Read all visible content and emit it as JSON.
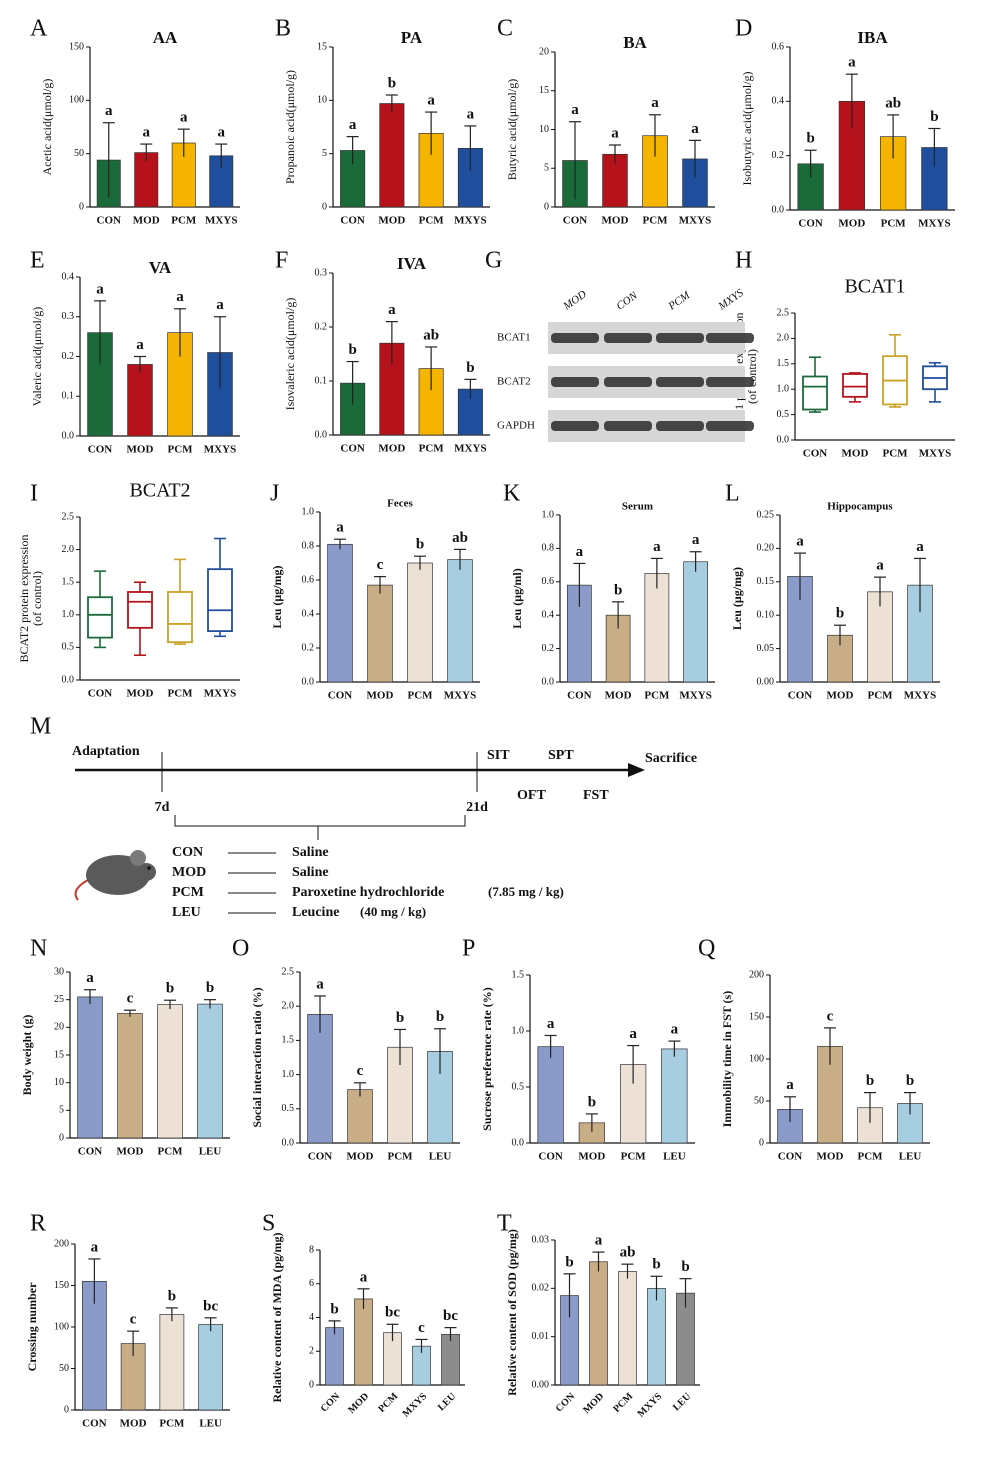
{
  "chart_data": [
    {
      "type": "bar",
      "panel": "A",
      "title": "AA",
      "ylabel": [
        "Acetic acid(μmol/g)"
      ],
      "categories": [
        "CON",
        "MOD",
        "PCM",
        "MXYS"
      ],
      "values": [
        44,
        51,
        60,
        48
      ],
      "errors": [
        35,
        8,
        13,
        11
      ],
      "annotations": [
        "a",
        "a",
        "a",
        "a"
      ],
      "colors": [
        "#1b6b3a",
        "#b5121b",
        "#f5b400",
        "#1f4e9c"
      ],
      "ylim": [
        0,
        150
      ],
      "yticks": [
        0,
        50,
        100,
        150
      ]
    },
    {
      "type": "bar",
      "panel": "B",
      "title": "PA",
      "ylabel": [
        "Propanoic acid(μmol/g)"
      ],
      "categories": [
        "CON",
        "MOD",
        "PCM",
        "MXYS"
      ],
      "values": [
        5.3,
        9.7,
        6.9,
        5.5
      ],
      "errors": [
        1.3,
        0.8,
        2.0,
        2.1
      ],
      "annotations": [
        "a",
        "b",
        "a",
        "a"
      ],
      "colors": [
        "#1b6b3a",
        "#b5121b",
        "#f5b400",
        "#1f4e9c"
      ],
      "ylim": [
        0,
        15
      ],
      "yticks": [
        0,
        5,
        10,
        15
      ]
    },
    {
      "type": "bar",
      "panel": "C",
      "title": "BA",
      "ylabel": [
        "Butyric acid(μmol/g)"
      ],
      "categories": [
        "CON",
        "MOD",
        "PCM",
        "MXYS"
      ],
      "values": [
        6.0,
        6.8,
        9.2,
        6.2
      ],
      "errors": [
        5.0,
        1.2,
        2.7,
        2.4
      ],
      "annotations": [
        "a",
        "a",
        "a",
        "a"
      ],
      "colors": [
        "#1b6b3a",
        "#b5121b",
        "#f5b400",
        "#1f4e9c"
      ],
      "ylim": [
        0,
        20
      ],
      "yticks": [
        0,
        5,
        10,
        15,
        20
      ]
    },
    {
      "type": "bar",
      "panel": "D",
      "title": "IBA",
      "ylabel": [
        "Isobutyric acid(μmol/g)"
      ],
      "categories": [
        "CON",
        "MOD",
        "PCM",
        "MXYS"
      ],
      "values": [
        0.17,
        0.4,
        0.27,
        0.23
      ],
      "errors": [
        0.05,
        0.1,
        0.08,
        0.07
      ],
      "annotations": [
        "b",
        "a",
        "ab",
        "b"
      ],
      "colors": [
        "#1b6b3a",
        "#b5121b",
        "#f5b400",
        "#1f4e9c"
      ],
      "ylim": [
        0,
        0.6
      ],
      "yticks": [
        {
          "value": 0,
          "label": "0.0"
        },
        0.2,
        0.4,
        0.6
      ]
    },
    {
      "type": "bar",
      "panel": "E",
      "title": "VA",
      "ylabel": [
        "Valeric acid(μmol/g)"
      ],
      "categories": [
        "CON",
        "MOD",
        "PCM",
        "MXYS"
      ],
      "values": [
        0.26,
        0.18,
        0.26,
        0.21
      ],
      "errors": [
        0.08,
        0.02,
        0.06,
        0.09
      ],
      "annotations": [
        "a",
        "a",
        "a",
        "a"
      ],
      "colors": [
        "#1b6b3a",
        "#b5121b",
        "#f5b400",
        "#1f4e9c"
      ],
      "ylim": [
        0,
        0.4
      ],
      "yticks": [
        {
          "value": 0,
          "label": "0.0"
        },
        0.1,
        0.2,
        0.3,
        0.4
      ]
    },
    {
      "type": "bar",
      "panel": "F",
      "title": "IVA",
      "ylabel": [
        "Isovaleric acid(μmol/g)"
      ],
      "categories": [
        "CON",
        "MOD",
        "PCM",
        "MXYS"
      ],
      "values": [
        0.096,
        0.17,
        0.123,
        0.085
      ],
      "errors": [
        0.04,
        0.04,
        0.04,
        0.018
      ],
      "annotations": [
        "b",
        "a",
        "ab",
        "b"
      ],
      "colors": [
        "#1b6b3a",
        "#b5121b",
        "#f5b400",
        "#1f4e9c"
      ],
      "ylim": [
        0,
        0.3
      ],
      "yticks": [
        {
          "value": 0,
          "label": "0.0"
        },
        0.1,
        0.2,
        0.3
      ]
    },
    {
      "type": "box",
      "panel": "H",
      "title": "BCAT1",
      "ylabel": [
        "BCAT1 protein expression",
        "(of control)"
      ],
      "categories": [
        "CON",
        "MOD",
        "PCM",
        "MXYS"
      ],
      "min": [
        0.55,
        0.75,
        0.65,
        0.75
      ],
      "q1": [
        0.6,
        0.85,
        0.7,
        1.0
      ],
      "median": [
        1.05,
        1.05,
        1.17,
        1.22
      ],
      "q3": [
        1.25,
        1.3,
        1.65,
        1.45
      ],
      "max": [
        1.63,
        1.32,
        2.07,
        1.52
      ],
      "colors": [
        "#1b6b3a",
        "#b5121b",
        "#c9a227",
        "#1f4e9c"
      ],
      "ylim": [
        0,
        2.5
      ],
      "yticks": [
        {
          "value": 0,
          "label": "0.0"
        },
        0.5,
        {
          "value": 1,
          "label": "1.0"
        },
        1.5,
        {
          "value": 2,
          "label": "2.0"
        },
        2.5
      ]
    },
    {
      "type": "box",
      "panel": "I",
      "title": "BCAT2",
      "ylabel": [
        "BCAT2 protein expression",
        "(of control)"
      ],
      "categories": [
        "CON",
        "MOD",
        "PCM",
        "MXYS"
      ],
      "min": [
        0.5,
        0.38,
        0.55,
        0.67
      ],
      "q1": [
        0.65,
        0.8,
        0.58,
        0.75
      ],
      "median": [
        1.0,
        1.2,
        0.86,
        1.07
      ],
      "q3": [
        1.27,
        1.35,
        1.35,
        1.7
      ],
      "max": [
        1.67,
        1.5,
        1.85,
        2.17
      ],
      "colors": [
        "#1b6b3a",
        "#b5121b",
        "#c9a227",
        "#1f4e9c"
      ],
      "ylim": [
        0,
        2.5
      ],
      "yticks": [
        {
          "value": 0,
          "label": "0.0"
        },
        0.5,
        {
          "value": 1,
          "label": "1.0"
        },
        1.5,
        {
          "value": 2,
          "label": "2.0"
        },
        2.5
      ]
    },
    {
      "type": "bar",
      "panel": "J",
      "title": "Feces",
      "ylabel": [
        "Leu (μg/mg)"
      ],
      "categories": [
        "CON",
        "MOD",
        "PCM",
        "MXYS"
      ],
      "values": [
        0.81,
        0.57,
        0.7,
        0.72
      ],
      "errors": [
        0.03,
        0.05,
        0.04,
        0.06
      ],
      "annotations": [
        "a",
        "c",
        "b",
        "ab"
      ],
      "colors": [
        "#8a9bc9",
        "#c8ad86",
        "#ece1d4",
        "#a7cde0"
      ],
      "ylim": [
        0,
        1.0
      ],
      "yticks": [
        {
          "value": 0,
          "label": "0.0"
        },
        0.2,
        0.4,
        0.6,
        0.8,
        {
          "value": 1,
          "label": "1.0"
        }
      ]
    },
    {
      "type": "bar",
      "panel": "K",
      "title": "Serum",
      "ylabel": [
        "Leu (μg/ml)"
      ],
      "categories": [
        "CON",
        "MOD",
        "PCM",
        "MXYS"
      ],
      "values": [
        0.58,
        0.4,
        0.65,
        0.72
      ],
      "errors": [
        0.13,
        0.08,
        0.09,
        0.06
      ],
      "annotations": [
        "a",
        "b",
        "a",
        "a"
      ],
      "colors": [
        "#8a9bc9",
        "#c8ad86",
        "#ece1d4",
        "#a7cde0"
      ],
      "ylim": [
        0,
        1.0
      ],
      "yticks": [
        {
          "value": 0,
          "label": "0.0"
        },
        0.2,
        0.4,
        0.6,
        0.8,
        {
          "value": 1,
          "label": "1.0"
        }
      ]
    },
    {
      "type": "bar",
      "panel": "L",
      "title": "Hippocampus",
      "ylabel": [
        "Leu (μg/mg)"
      ],
      "categories": [
        "CON",
        "MOD",
        "PCM",
        "MXYS"
      ],
      "values": [
        0.158,
        0.07,
        0.135,
        0.145
      ],
      "errors": [
        0.035,
        0.015,
        0.022,
        0.04
      ],
      "annotations": [
        "a",
        "b",
        "a",
        "a"
      ],
      "colors": [
        "#8a9bc9",
        "#c8ad86",
        "#ece1d4",
        "#a7cde0"
      ],
      "ylim": [
        0,
        0.25
      ],
      "yticks": [
        {
          "value": 0,
          "label": "0.00"
        },
        0.05,
        {
          "value": 0.1,
          "label": "0.10"
        },
        0.15,
        {
          "value": 0.2,
          "label": "0.20"
        },
        0.25
      ]
    },
    {
      "type": "bar",
      "panel": "N",
      "ylabel": [
        "Body weight (g)"
      ],
      "categories": [
        "CON",
        "MOD",
        "PCM",
        "LEU"
      ],
      "values": [
        25.5,
        22.5,
        24.1,
        24.2
      ],
      "errors": [
        1.3,
        0.6,
        0.8,
        0.8
      ],
      "annotations": [
        "a",
        "c",
        "b",
        "b"
      ],
      "colors": [
        "#8a9bc9",
        "#c8ad86",
        "#ece1d4",
        "#a7cde0"
      ],
      "ylim": [
        0,
        30
      ],
      "yticks": [
        0,
        5,
        10,
        15,
        20,
        25,
        30
      ]
    },
    {
      "type": "bar",
      "panel": "O",
      "ylabel": [
        "Social interaction ratio (%)"
      ],
      "categories": [
        "CON",
        "MOD",
        "PCM",
        "LEU"
      ],
      "values": [
        1.88,
        0.78,
        1.4,
        1.34
      ],
      "errors": [
        0.27,
        0.1,
        0.26,
        0.33
      ],
      "annotations": [
        "a",
        "c",
        "b",
        "b"
      ],
      "colors": [
        "#8a9bc9",
        "#c8ad86",
        "#ece1d4",
        "#a7cde0"
      ],
      "ylim": [
        0,
        2.5
      ],
      "yticks": [
        {
          "value": 0,
          "label": "0.0"
        },
        0.5,
        {
          "value": 1,
          "label": "1.0"
        },
        1.5,
        {
          "value": 2,
          "label": "2.0"
        },
        2.5
      ]
    },
    {
      "type": "bar",
      "panel": "P",
      "ylabel": [
        "Sucrose preference rate (%)"
      ],
      "categories": [
        "CON",
        "MOD",
        "PCM",
        "LEU"
      ],
      "values": [
        0.86,
        0.18,
        0.7,
        0.84
      ],
      "errors": [
        0.1,
        0.08,
        0.17,
        0.07
      ],
      "annotations": [
        "a",
        "b",
        "a",
        "a"
      ],
      "colors": [
        "#8a9bc9",
        "#c8ad86",
        "#ece1d4",
        "#a7cde0"
      ],
      "ylim": [
        0,
        1.5
      ],
      "yticks": [
        {
          "value": 0,
          "label": "0.0"
        },
        0.5,
        {
          "value": 1,
          "label": "1.0"
        },
        1.5
      ]
    },
    {
      "type": "bar",
      "panel": "Q",
      "ylabel": [
        "Immobility time in FST (s)"
      ],
      "categories": [
        "CON",
        "MOD",
        "PCM",
        "LEU"
      ],
      "values": [
        40,
        115,
        42,
        47
      ],
      "errors": [
        15,
        22,
        18,
        13
      ],
      "annotations": [
        "a",
        "c",
        "b",
        "b"
      ],
      "colors": [
        "#8a9bc9",
        "#c8ad86",
        "#ece1d4",
        "#a7cde0"
      ],
      "ylim": [
        0,
        200
      ],
      "yticks": [
        0,
        50,
        100,
        150,
        200
      ]
    },
    {
      "type": "bar",
      "panel": "R",
      "ylabel": [
        "Crossing number"
      ],
      "categories": [
        "CON",
        "MOD",
        "PCM",
        "LEU"
      ],
      "values": [
        155,
        80,
        115,
        103
      ],
      "errors": [
        27,
        15,
        8,
        8
      ],
      "annotations": [
        "a",
        "c",
        "b",
        "bc"
      ],
      "colors": [
        "#8a9bc9",
        "#c8ad86",
        "#ece1d4",
        "#a7cde0"
      ],
      "ylim": [
        0,
        200
      ],
      "yticks": [
        0,
        50,
        100,
        150,
        200
      ]
    },
    {
      "type": "bar",
      "panel": "S",
      "ylabel": [
        "Relative content of  MDA (pg/mg)"
      ],
      "categories": [
        "CON",
        "MOD",
        "PCM",
        "MXYS",
        "LEU"
      ],
      "values": [
        3.4,
        5.1,
        3.1,
        2.3,
        3.0
      ],
      "errors": [
        0.4,
        0.6,
        0.5,
        0.4,
        0.4
      ],
      "annotations": [
        "b",
        "a",
        "bc",
        "c",
        "bc"
      ],
      "colors": [
        "#8a9bc9",
        "#c8ad86",
        "#ece1d4",
        "#a7cde0",
        "#8c8c8c"
      ],
      "ylim": [
        0,
        8
      ],
      "yticks": [
        0,
        2,
        4,
        6,
        8
      ],
      "rotate_xlabels": true
    },
    {
      "type": "bar",
      "panel": "T",
      "ylabel": [
        "Relative content of SOD (pg/mg)"
      ],
      "categories": [
        "CON",
        "MOD",
        "PCM",
        "MXYS",
        "LEU"
      ],
      "values": [
        0.0185,
        0.0255,
        0.0235,
        0.02,
        0.019
      ],
      "errors": [
        0.0045,
        0.002,
        0.0015,
        0.0025,
        0.003
      ],
      "annotations": [
        "b",
        "a",
        "ab",
        "b",
        "b"
      ],
      "colors": [
        "#8a9bc9",
        "#c8ad86",
        "#ece1d4",
        "#a7cde0",
        "#8c8c8c"
      ],
      "ylim": [
        0,
        0.03
      ],
      "yticks": [
        {
          "value": 0,
          "label": "0.00"
        },
        0.01,
        0.02,
        0.03
      ],
      "rotate_xlabels": true
    }
  ],
  "blot": {
    "panel": "G",
    "lanes": [
      "MOD",
      "CON",
      "PCM",
      "MXYS"
    ],
    "bands": [
      "BCAT1",
      "BCAT2",
      "GAPDH"
    ]
  },
  "timeline": {
    "panel": "M",
    "start": "Adaptation",
    "marks": [
      "7d",
      "21d"
    ],
    "tests_top": [
      "SIT",
      "SPT"
    ],
    "tests_bottom": [
      "OFT",
      "FST"
    ],
    "end": "Sacrifice",
    "groups": [
      {
        "group": "CON",
        "treatment": "Saline"
      },
      {
        "group": "MOD",
        "treatment": "Saline"
      },
      {
        "group": "PCM",
        "treatment": "Paroxetine hydrochloride",
        "dose": "(7.85 mg / kg)"
      },
      {
        "group": "LEU",
        "treatment": "Leucine",
        "dose": "(40 mg / kg)"
      }
    ]
  }
}
